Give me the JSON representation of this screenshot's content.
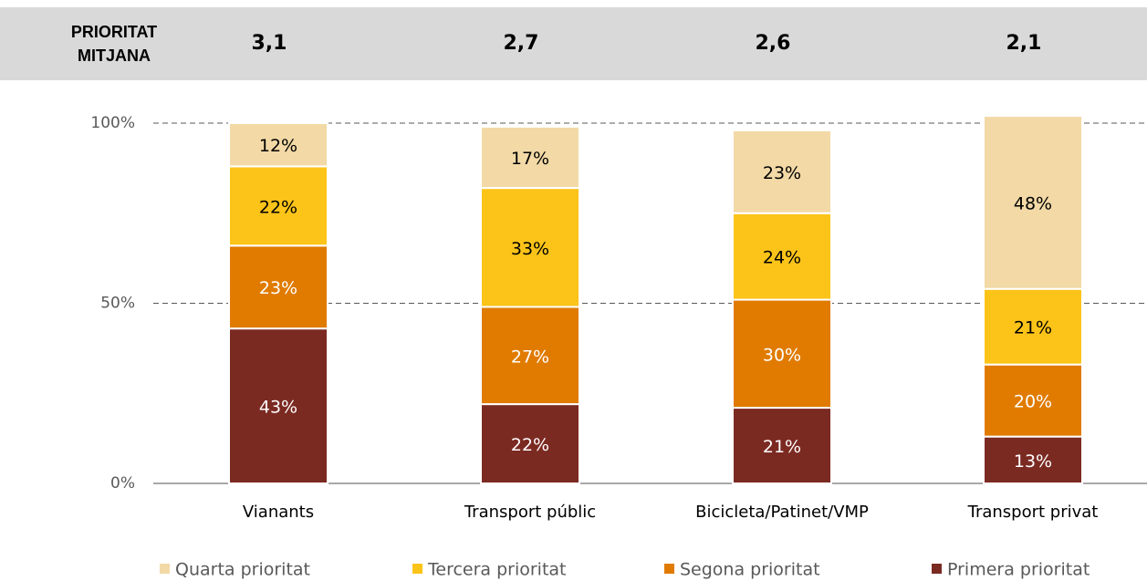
{
  "header": {
    "label": "PRIORITAT MITJANA",
    "values": [
      3.1,
      2.7,
      2.6,
      2.1
    ],
    "value_labels": [
      "3,1",
      "2,7",
      "2,6",
      "2,1"
    ]
  },
  "chart_data": {
    "type": "stacked_bar",
    "categories": [
      "Vianants",
      "Transport públic",
      "Bicicleta/Patinet/VMP",
      "Transport privat"
    ],
    "series": [
      {
        "name": "Primera prioritat",
        "color": "#7b2a22",
        "values": [
          43,
          22,
          21,
          13
        ],
        "value_labels": [
          "43%",
          "22%",
          "21%",
          "13%"
        ]
      },
      {
        "name": "Segona prioritat",
        "color": "#e07b00",
        "values": [
          23,
          27,
          30,
          20
        ],
        "value_labels": [
          "23%",
          "27%",
          "30%",
          "20%"
        ]
      },
      {
        "name": "Tercera prioritat",
        "color": "#fcc419",
        "values": [
          22,
          33,
          24,
          21
        ],
        "value_labels": [
          "22%",
          "33%",
          "24%",
          "21%"
        ]
      },
      {
        "name": "Quarta prioritat",
        "color": "#f2d9a6",
        "values": [
          12,
          17,
          23,
          48
        ],
        "value_labels": [
          "12%",
          "17%",
          "23%",
          "48%"
        ]
      }
    ],
    "ylim": [
      0,
      100
    ],
    "yticks": [
      {
        "value": 0,
        "label": "0%"
      },
      {
        "value": 50,
        "label": "50%"
      },
      {
        "value": 100,
        "label": "100%"
      }
    ],
    "grid": true
  }
}
